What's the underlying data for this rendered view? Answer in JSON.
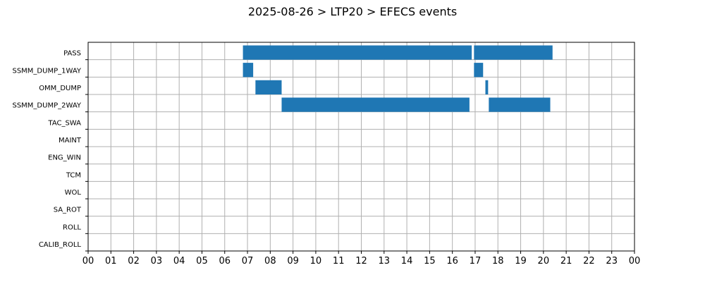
{
  "chart_data": {
    "type": "bar",
    "orientation": "horizontal-timeline",
    "title": "2025-08-26 > LTP20 > EFECS events",
    "xlabel": "",
    "ylabel": "",
    "xlim": [
      0,
      24
    ],
    "x_tick_labels": [
      "00",
      "01",
      "02",
      "03",
      "04",
      "05",
      "06",
      "07",
      "08",
      "09",
      "10",
      "11",
      "12",
      "13",
      "14",
      "15",
      "16",
      "17",
      "18",
      "19",
      "20",
      "21",
      "22",
      "23",
      "00"
    ],
    "categories": [
      "PASS",
      "SSMM_DUMP_1WAY",
      "OMM_DUMP",
      "SSMM_DUMP_2WAY",
      "TAC_SWA",
      "MAINT",
      "ENG_WIN",
      "TCM",
      "WOL",
      "SA_ROT",
      "ROLL",
      "CALIB_ROLL"
    ],
    "grid": true,
    "bar_color": "#1f77b4",
    "events": [
      {
        "category": "PASS",
        "start": 6.8,
        "end": 16.85
      },
      {
        "category": "PASS",
        "start": 16.95,
        "end": 20.4
      },
      {
        "category": "SSMM_DUMP_1WAY",
        "start": 6.8,
        "end": 7.25
      },
      {
        "category": "SSMM_DUMP_1WAY",
        "start": 16.95,
        "end": 17.35
      },
      {
        "category": "OMM_DUMP",
        "start": 7.35,
        "end": 8.5
      },
      {
        "category": "OMM_DUMP",
        "start": 17.45,
        "end": 17.57
      },
      {
        "category": "SSMM_DUMP_2WAY",
        "start": 8.5,
        "end": 16.75
      },
      {
        "category": "SSMM_DUMP_2WAY",
        "start": 17.6,
        "end": 20.3
      }
    ]
  }
}
